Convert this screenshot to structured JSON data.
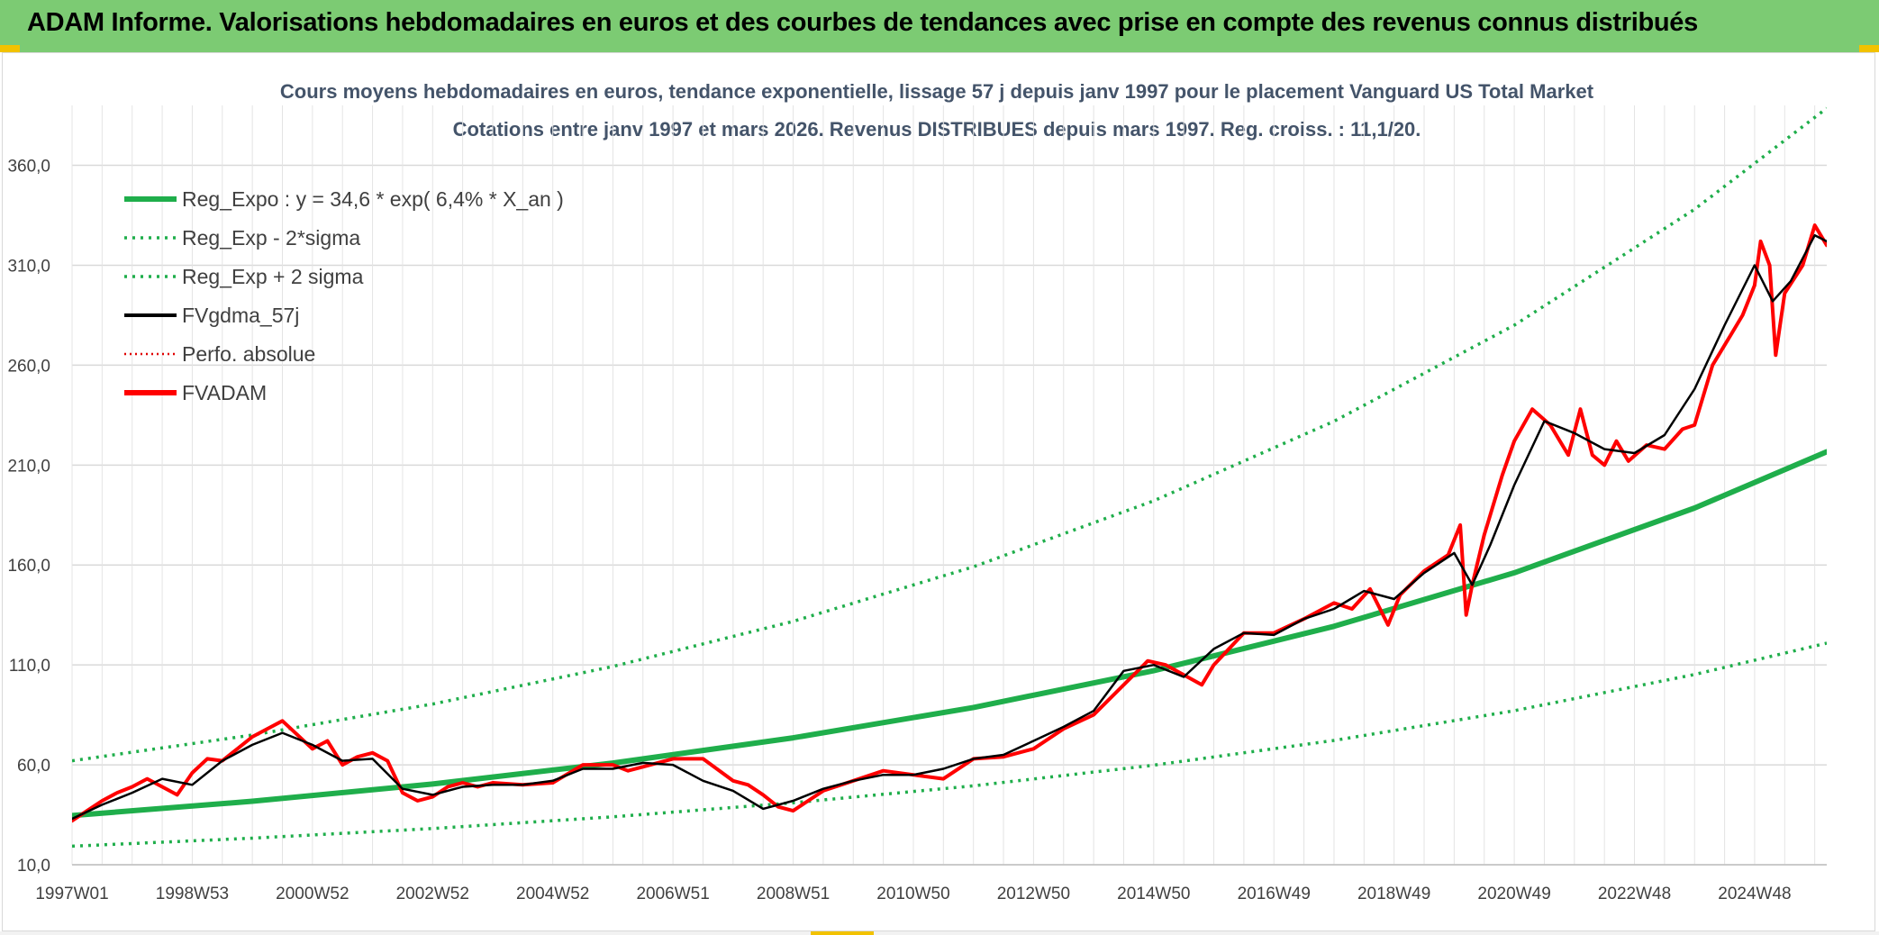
{
  "banner": {
    "title": "ADAM Informe. Valorisations hebdomadaires en euros et des courbes de tendances avec prise en compte des revenus connus distribués",
    "background": "#7ccb73"
  },
  "chart_data": {
    "type": "line",
    "title": "Cours moyens hebdomadaires en euros, tendance exponentielle, lissage 57 j depuis janv 1997 pour le placement Vanguard US Total Market",
    "subtitle": "Cotations entre janv 1997 et mars 2026. Revenus DISTRIBUES depuis mars 1997. Reg. croiss. : 11,1/20.",
    "xlabel": "",
    "ylabel": "",
    "x_range_years": [
      1997.0,
      2026.2
    ],
    "ylim": [
      10,
      390
    ],
    "yticks": [
      10,
      60,
      110,
      160,
      210,
      260,
      310,
      360
    ],
    "ytick_labels": [
      "10,0",
      "60,0",
      "110,0",
      "160,0",
      "210,0",
      "260,0",
      "310,0",
      "360,0"
    ],
    "xticks": [
      1997.0,
      1999.0,
      2001.0,
      2003.0,
      2005.0,
      2007.0,
      2009.0,
      2011.0,
      2013.0,
      2015.0,
      2017.0,
      2019.0,
      2021.0,
      2023.0,
      2025.0
    ],
    "xtick_labels": [
      "1997W01",
      "1998W53",
      "2000W52",
      "2002W52",
      "2004W52",
      "2006W51",
      "2008W51",
      "2010W50",
      "2012W50",
      "2014W50",
      "2016W49",
      "2018W49",
      "2020W49",
      "2022W48",
      "2024W48"
    ],
    "grid": true,
    "legend_position": "top-left",
    "series": [
      {
        "name": "Reg_Expo : y = 34,6 * exp( 6,4% *  X_an )",
        "color": "#1fae4b",
        "style": "solid-thick",
        "x": [
          1997.0,
          2000.0,
          2003.0,
          2006.0,
          2009.0,
          2012.0,
          2015.0,
          2018.0,
          2021.0,
          2024.0,
          2026.2
        ],
        "values": [
          34.6,
          41.8,
          50.4,
          60.9,
          73.5,
          88.7,
          107.1,
          129.3,
          156.1,
          188.5,
          216.7
        ]
      },
      {
        "name": "Reg_Exp - 2*sigma",
        "color": "#1fae4b",
        "style": "dotted",
        "x": [
          1997.0,
          2000.0,
          2003.0,
          2006.0,
          2009.0,
          2012.0,
          2015.0,
          2018.0,
          2021.0,
          2024.0,
          2026.2
        ],
        "values": [
          19.3,
          23.3,
          28.1,
          34.0,
          41.0,
          49.5,
          59.8,
          72.2,
          87.1,
          105.2,
          120.9
        ]
      },
      {
        "name": "Reg_Exp + 2 sigma",
        "color": "#1fae4b",
        "style": "dotted",
        "x": [
          1997.0,
          2000.0,
          2003.0,
          2006.0,
          2009.0,
          2012.0,
          2015.0,
          2018.0,
          2021.0,
          2024.0,
          2026.2
        ],
        "values": [
          62.0,
          74.9,
          90.4,
          109.2,
          131.8,
          159.1,
          192.1,
          231.9,
          280.0,
          338.0,
          388.6
        ]
      },
      {
        "name": "FVgdma_57j",
        "color": "#000000",
        "style": "solid",
        "x": [
          1997.0,
          1997.5,
          1998.0,
          1998.5,
          1999.0,
          1999.5,
          2000.0,
          2000.5,
          2001.0,
          2001.5,
          2002.0,
          2002.5,
          2003.0,
          2003.5,
          2004.0,
          2004.5,
          2005.0,
          2005.5,
          2006.0,
          2006.5,
          2007.0,
          2007.5,
          2008.0,
          2008.5,
          2009.0,
          2009.5,
          2010.0,
          2010.5,
          2011.0,
          2011.5,
          2012.0,
          2012.5,
          2013.0,
          2013.5,
          2014.0,
          2014.5,
          2015.0,
          2015.5,
          2016.0,
          2016.5,
          2017.0,
          2017.5,
          2018.0,
          2018.5,
          2019.0,
          2019.5,
          2020.0,
          2020.3,
          2020.6,
          2021.0,
          2021.5,
          2022.0,
          2022.5,
          2023.0,
          2023.5,
          2024.0,
          2024.5,
          2025.0,
          2025.3,
          2025.6,
          2026.0,
          2026.2
        ],
        "values": [
          33,
          40,
          46,
          53,
          50,
          62,
          70,
          76,
          70,
          62,
          63,
          48,
          45,
          49,
          50,
          50,
          52,
          58,
          58,
          61,
          60,
          52,
          47,
          38,
          42,
          48,
          52,
          55,
          55,
          58,
          63,
          65,
          72,
          79,
          87,
          107,
          110,
          104,
          118,
          126,
          125,
          133,
          138,
          147,
          143,
          156,
          166,
          150,
          170,
          200,
          232,
          226,
          218,
          216,
          225,
          248,
          280,
          310,
          292,
          302,
          325,
          322
        ]
      },
      {
        "name": "Perfo. absolue",
        "color": "#e00000",
        "style": "dotted",
        "x": [],
        "values": []
      },
      {
        "name": "FVADAM",
        "color": "#ff0000",
        "style": "solid-thick",
        "x": [
          1997.0,
          1997.25,
          1997.5,
          1997.75,
          1998.0,
          1998.25,
          1998.5,
          1998.75,
          1999.0,
          1999.25,
          1999.5,
          1999.75,
          2000.0,
          2000.25,
          2000.5,
          2000.75,
          2001.0,
          2001.25,
          2001.5,
          2001.75,
          2002.0,
          2002.25,
          2002.5,
          2002.75,
          2003.0,
          2003.25,
          2003.5,
          2003.75,
          2004.0,
          2004.5,
          2005.0,
          2005.5,
          2006.0,
          2006.25,
          2006.5,
          2007.0,
          2007.5,
          2008.0,
          2008.25,
          2008.5,
          2008.75,
          2009.0,
          2009.25,
          2009.5,
          2010.0,
          2010.5,
          2011.0,
          2011.5,
          2012.0,
          2012.5,
          2013.0,
          2013.5,
          2014.0,
          2014.5,
          2014.9,
          2015.2,
          2015.5,
          2015.8,
          2016.0,
          2016.5,
          2017.0,
          2017.5,
          2018.0,
          2018.3,
          2018.6,
          2018.9,
          2019.1,
          2019.5,
          2019.9,
          2020.1,
          2020.2,
          2020.3,
          2020.5,
          2020.8,
          2021.0,
          2021.3,
          2021.6,
          2021.9,
          2022.1,
          2022.3,
          2022.5,
          2022.7,
          2022.9,
          2023.2,
          2023.5,
          2023.8,
          2024.0,
          2024.3,
          2024.6,
          2024.8,
          2025.0,
          2025.1,
          2025.25,
          2025.35,
          2025.5,
          2025.8,
          2026.0,
          2026.2
        ],
        "values": [
          32,
          37,
          42,
          46,
          49,
          53,
          49,
          45,
          56,
          63,
          62,
          68,
          74,
          78,
          82,
          75,
          68,
          72,
          60,
          64,
          66,
          62,
          46,
          42,
          44,
          49,
          51,
          49,
          51,
          50,
          51,
          60,
          60,
          57,
          59,
          63,
          63,
          52,
          50,
          45,
          39,
          37,
          42,
          47,
          52,
          57,
          55,
          53,
          63,
          64,
          68,
          78,
          85,
          100,
          112,
          110,
          105,
          100,
          110,
          126,
          126,
          133,
          141,
          138,
          148,
          130,
          145,
          157,
          165,
          180,
          135,
          150,
          175,
          205,
          222,
          238,
          230,
          215,
          238,
          215,
          210,
          222,
          212,
          220,
          218,
          228,
          230,
          260,
          275,
          285,
          300,
          322,
          310,
          265,
          296,
          310,
          330,
          320
        ]
      }
    ]
  }
}
